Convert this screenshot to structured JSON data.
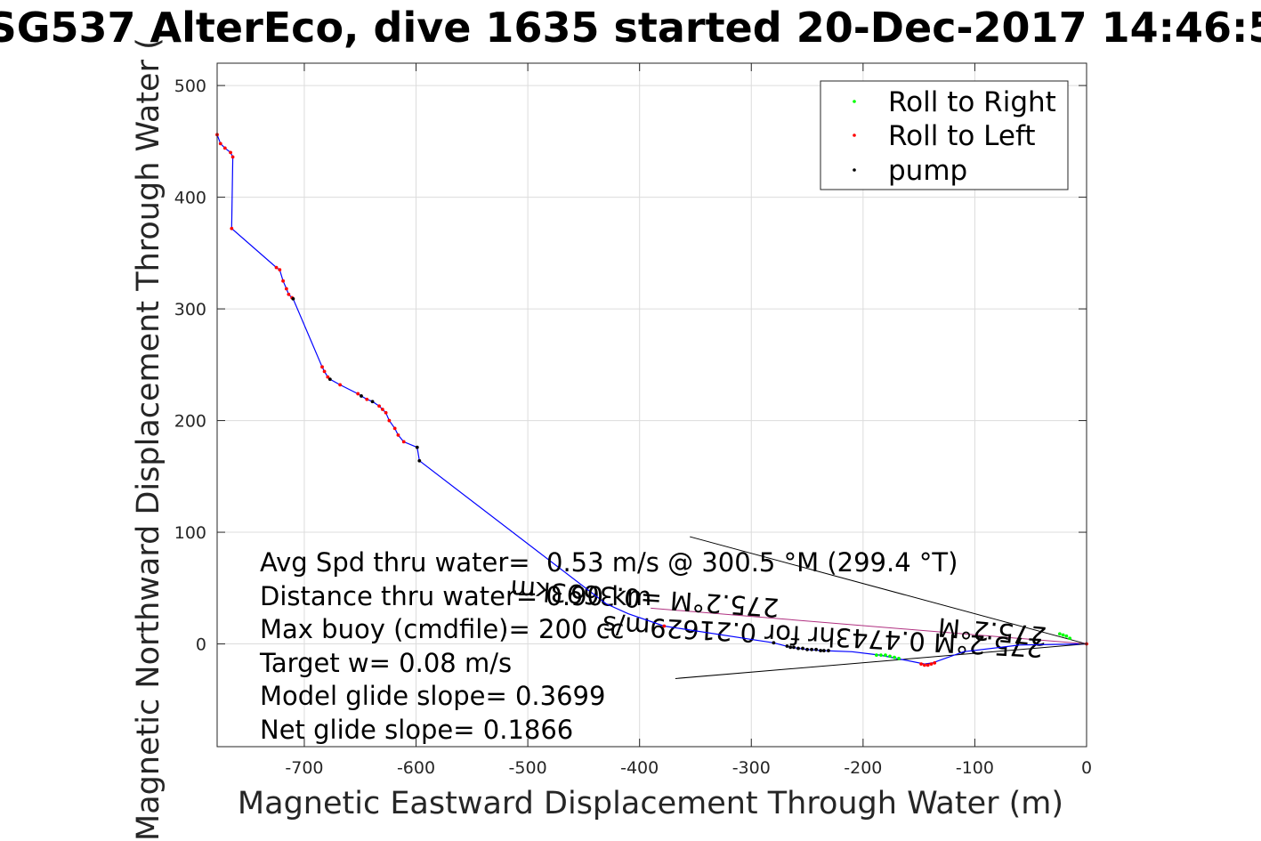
{
  "chart_data": {
    "type": "scatter",
    "title": "SG537 AlterEco, dive 1635 started 20-Dec-2017 14:46:5",
    "xlabel": "Magnetic Eastward Displacement Through Water (m)",
    "ylabel": "Magnetic Northward Displacement Through Water (",
    "xlim": [
      -778,
      0
    ],
    "ylim": [
      -92,
      520
    ],
    "xticks": [
      -700,
      -600,
      -500,
      -400,
      -300,
      -200,
      -100,
      0
    ],
    "yticks": [
      0,
      100,
      200,
      300,
      400,
      500
    ],
    "grid": true,
    "legend_position": "top-right",
    "legend": [
      {
        "label": "Roll to Right",
        "color": "#00ff00"
      },
      {
        "label": "Roll to Left",
        "color": "#ff0000"
      },
      {
        "label": "pump",
        "color": "#000000"
      }
    ],
    "track_color": "#0000ff",
    "track": [
      [
        -778,
        456
      ],
      [
        -775,
        448
      ],
      [
        -771,
        444
      ],
      [
        -766,
        440
      ],
      [
        -764,
        436
      ],
      [
        -765,
        372
      ],
      [
        -725,
        337
      ],
      [
        -722,
        335
      ],
      [
        -719,
        325
      ],
      [
        -716,
        318
      ],
      [
        -714,
        313
      ],
      [
        -711,
        310
      ],
      [
        -710,
        309
      ],
      [
        -684,
        248
      ],
      [
        -682,
        244
      ],
      [
        -679,
        239
      ],
      [
        -677,
        237
      ],
      [
        -668,
        232
      ],
      [
        -652,
        224
      ],
      [
        -649,
        222
      ],
      [
        -644,
        219
      ],
      [
        -639,
        217
      ],
      [
        -633,
        213
      ],
      [
        -630,
        210
      ],
      [
        -627,
        207
      ],
      [
        -624,
        200
      ],
      [
        -619,
        193
      ],
      [
        -616,
        187
      ],
      [
        -611,
        181
      ],
      [
        -599,
        176
      ],
      [
        -597,
        164
      ],
      [
        -430,
        36
      ],
      [
        -410,
        27
      ],
      [
        -378,
        16
      ],
      [
        -280,
        1
      ],
      [
        -265,
        -3
      ],
      [
        -250,
        -5
      ],
      [
        -235,
        -6
      ],
      [
        -210,
        -7
      ],
      [
        -185,
        -10
      ],
      [
        -165,
        -14
      ],
      [
        -145,
        -18
      ],
      [
        -138,
        -17
      ],
      [
        -110,
        -7
      ],
      [
        -60,
        -1
      ],
      [
        0,
        0
      ]
    ],
    "roll_right": [
      [
        -188,
        -10
      ],
      [
        -184,
        -10
      ],
      [
        -180,
        -10
      ],
      [
        -176,
        -11
      ],
      [
        -172,
        -12
      ],
      [
        -168,
        -13
      ],
      [
        -24,
        9
      ],
      [
        -21,
        8
      ],
      [
        -18,
        7
      ],
      [
        -15,
        5
      ]
    ],
    "roll_left": [
      [
        -778,
        456
      ],
      [
        -775,
        448
      ],
      [
        -771,
        444
      ],
      [
        -766,
        440
      ],
      [
        -764,
        436
      ],
      [
        -765,
        372
      ],
      [
        -725,
        337
      ],
      [
        -722,
        335
      ],
      [
        -719,
        325
      ],
      [
        -716,
        318
      ],
      [
        -714,
        313
      ],
      [
        -711,
        310
      ],
      [
        -684,
        248
      ],
      [
        -682,
        244
      ],
      [
        -679,
        239
      ],
      [
        -668,
        232
      ],
      [
        -652,
        224
      ],
      [
        -644,
        219
      ],
      [
        -633,
        213
      ],
      [
        -630,
        210
      ],
      [
        -627,
        207
      ],
      [
        -624,
        200
      ],
      [
        -619,
        193
      ],
      [
        -616,
        187
      ],
      [
        -611,
        181
      ],
      [
        -378,
        16
      ],
      [
        -148,
        -18
      ],
      [
        -145,
        -19
      ],
      [
        -142,
        -19
      ],
      [
        -139,
        -18
      ],
      [
        -136,
        -17
      ],
      [
        0,
        0
      ]
    ],
    "pump": [
      [
        -710,
        309
      ],
      [
        -677,
        237
      ],
      [
        -649,
        222
      ],
      [
        -639,
        217
      ],
      [
        -599,
        176
      ],
      [
        -597,
        164
      ],
      [
        -280,
        1
      ],
      [
        -268,
        -2
      ],
      [
        -265,
        -3
      ],
      [
        -262,
        -3
      ],
      [
        -258,
        -4
      ],
      [
        -254,
        -4
      ],
      [
        -250,
        -5
      ],
      [
        -246,
        -5
      ],
      [
        -242,
        -5
      ],
      [
        -238,
        -6
      ],
      [
        -235,
        -6
      ],
      [
        -231,
        -6
      ]
    ],
    "lines": [
      [
        [
          -355,
          96
        ],
        [
          0,
          0
        ]
      ],
      [
        [
          -368,
          -31
        ],
        [
          0,
          0
        ]
      ],
      [
        [
          -390,
          32
        ],
        [
          0,
          0
        ]
      ]
    ],
    "segment_label_1": "275.2°M =0.3693km",
    "segment_label_2": "275.2°M 0.4743hr for 0.21629m/s",
    "segment_label_3": "275.2°M",
    "annotations": [
      "Avg Spd thru water=  0.53 m/s @ 300.5 °M (299.4 °T)",
      "Distance thru water= 0.90 km",
      "Max buoy (cmdfile)= 200 cc",
      "Target w= 0.08 m/s",
      "Model glide slope= 0.3699",
      "Net glide slope= 0.1866"
    ]
  }
}
